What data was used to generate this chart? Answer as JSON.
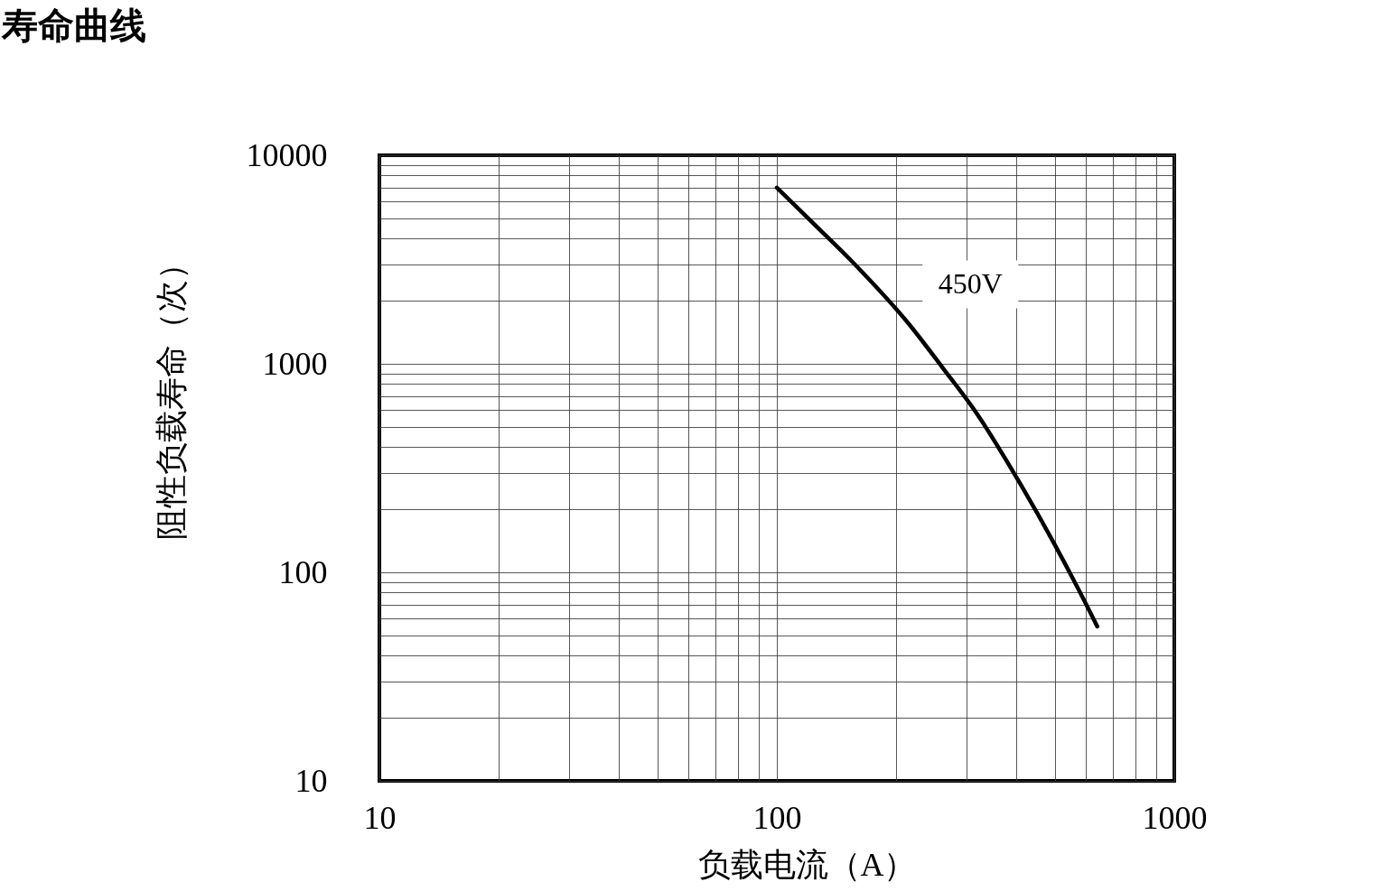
{
  "chart_data": {
    "type": "line",
    "title": "寿命曲线",
    "xlabel": "负载电流（A）",
    "ylabel": "阻性负载寿命（次）",
    "log": "xy",
    "grid": true,
    "line_style": "solid",
    "xlim": [
      10,
      1000
    ],
    "ylim": [
      10,
      10000
    ],
    "xticks": [
      10,
      {
        "value": 20,
        "label": null
      },
      {
        "value": 30,
        "label": null
      },
      {
        "value": 40,
        "label": null
      },
      {
        "value": 50,
        "label": null
      },
      {
        "value": 60,
        "label": null
      },
      {
        "value": 70,
        "label": null
      },
      {
        "value": 80,
        "label": null
      },
      {
        "value": 90,
        "label": null
      },
      100,
      {
        "value": 200,
        "label": null
      },
      {
        "value": 300,
        "label": null
      },
      {
        "value": 400,
        "label": null
      },
      {
        "value": 500,
        "label": null
      },
      {
        "value": 600,
        "label": null
      },
      {
        "value": 700,
        "label": null
      },
      {
        "value": 800,
        "label": null
      },
      {
        "value": 900,
        "label": null
      },
      1000
    ],
    "yticks": [
      10,
      {
        "value": 20,
        "label": null
      },
      {
        "value": 30,
        "label": null
      },
      {
        "value": 40,
        "label": null
      },
      {
        "value": 50,
        "label": null
      },
      {
        "value": 60,
        "label": null
      },
      {
        "value": 70,
        "label": null
      },
      {
        "value": 80,
        "label": null
      },
      {
        "value": 90,
        "label": null
      },
      100,
      {
        "value": 200,
        "label": null
      },
      {
        "value": 300,
        "label": null
      },
      {
        "value": 400,
        "label": null
      },
      {
        "value": 500,
        "label": null
      },
      {
        "value": 600,
        "label": null
      },
      {
        "value": 700,
        "label": null
      },
      {
        "value": 800,
        "label": null
      },
      {
        "value": 900,
        "label": null
      },
      1000,
      {
        "value": 2000,
        "label": null
      },
      {
        "value": 3000,
        "label": null
      },
      {
        "value": 4000,
        "label": null
      },
      {
        "value": 5000,
        "label": null
      },
      {
        "value": 6000,
        "label": null
      },
      {
        "value": 7000,
        "label": null
      },
      {
        "value": 8000,
        "label": null
      },
      {
        "value": 9000,
        "label": null
      },
      10000
    ],
    "x": [
      100,
      123,
      157,
      215,
      261,
      320,
      410,
      500,
      570,
      640
    ],
    "series": [
      {
        "name": "450V",
        "color": "#000000",
        "values": [
          7000,
          4750,
          3000,
          1550,
          960,
          570,
          265,
          136,
          85,
          55
        ]
      }
    ]
  }
}
